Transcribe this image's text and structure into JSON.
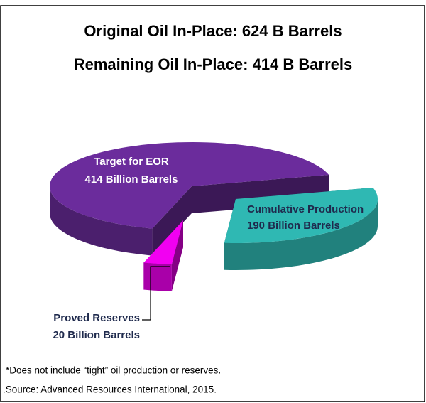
{
  "chart_data": {
    "type": "pie3d",
    "title": "Original Oil In-Place: 624 B Barrels",
    "subtitle": "Remaining Oil In-Place: 414 B Barrels",
    "categories": [
      "Target for EOR",
      "Cumulative Production",
      "Proved Reserves"
    ],
    "values": [
      414,
      190,
      20
    ],
    "value_labels": [
      "414 Billion Barrels",
      "190 Billion Barrels",
      "20 Billion Barrels"
    ],
    "colors": [
      "#6b2c9c",
      "#2fb8b3",
      "#f200f2"
    ],
    "notes": [
      "*Does not include “tight” oil production or reserves.",
      ".Source: Advanced Resources International, 2015."
    ]
  }
}
